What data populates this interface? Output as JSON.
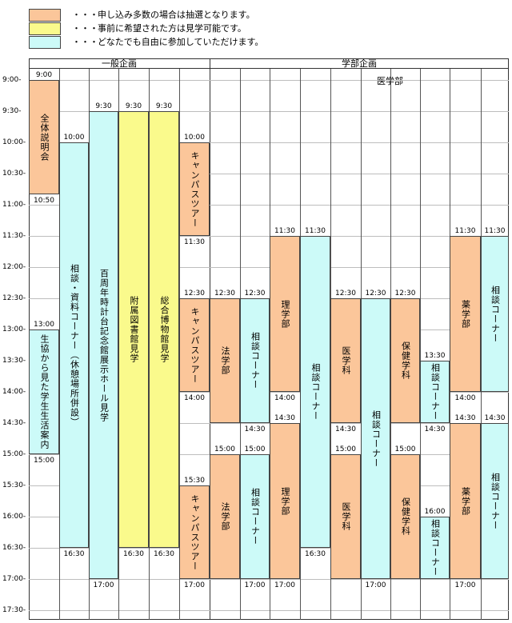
{
  "legend": [
    {
      "dots": "・・・",
      "text": "申し込み多数の場合は抽選となります。"
    },
    {
      "dots": "・・・",
      "text": "事前に希望された方は見学可能です。"
    },
    {
      "dots": "・・・",
      "text": "どなたでも自由に参加していただけます。"
    }
  ],
  "colors": {
    "lottery": "#fbc69a",
    "reserved": "#fafa8c",
    "open": "#ccfaf8"
  },
  "headers": {
    "general": "一般企画",
    "faculty": "学部企画",
    "medical": "医学部"
  },
  "times": [
    "9:00-",
    "9:30-",
    "10:00-",
    "10:30-",
    "11:00-",
    "11:30-",
    "12:00-",
    "12:30-",
    "13:00-",
    "13:30-",
    "14:00-",
    "14:30-",
    "15:00-",
    "15:30-",
    "16:00-",
    "16:30-",
    "17:00-",
    "17:30-"
  ],
  "blocks": {
    "b1": {
      "label": "全体説明会",
      "start": "9:00",
      "end": "10:50"
    },
    "b2": {
      "label": "生協から見た学生生活案内",
      "start": "13:00",
      "end": "15:00"
    },
    "b3": {
      "label": "相談・資料コーナー（休憩場所併設）",
      "start": "10:00",
      "end": "16:30"
    },
    "b4": {
      "label": "百周年時計台記念館展示ホール見学",
      "start": "9:30",
      "end": "17:00"
    },
    "b5": {
      "label": "附属図書館見学",
      "start": "9:30",
      "end": "16:30"
    },
    "b6": {
      "label": "総合博物館見学",
      "start": "9:30",
      "end": "16:30"
    },
    "b7": {
      "label": "キャンパスツアー",
      "start": "10:00",
      "end": "11:30"
    },
    "b8": {
      "label": "キャンパスツアー",
      "start": "12:30",
      "end": "14:00"
    },
    "b9": {
      "label": "キャンパスツアー",
      "start": "15:30",
      "end": "17:00"
    },
    "b10": {
      "label": "法学部",
      "start": "12:30",
      "end": "14:30"
    },
    "b11": {
      "label": "相談コーナー",
      "start": "12:30",
      "end": "14:30"
    },
    "b12": {
      "label": "法学部",
      "start": "15:00",
      "end": "17:00"
    },
    "b13": {
      "label": "相談コーナー",
      "start": "15:00",
      "end": "17:00"
    },
    "b14": {
      "label": "理学部",
      "start": "11:30",
      "end": "14:00"
    },
    "b15": {
      "label": "理学部",
      "start": "14:30",
      "end": "17:00"
    },
    "b16": {
      "label": "相談コーナー",
      "start": "11:30",
      "end": "16:30"
    },
    "b17": {
      "label": "医学科",
      "start": "12:30",
      "end": "14:30"
    },
    "b18": {
      "label": "医学科",
      "start": "15:00",
      "end": "17:00"
    },
    "b19": {
      "label": "相談コーナー",
      "start": "12:30",
      "end": "17:00"
    },
    "b20": {
      "label": "保健学科",
      "start": "12:30",
      "end": "14:30"
    },
    "b21": {
      "label": "保健学科",
      "start": "15:00",
      "end": "17:00"
    },
    "b22": {
      "label": "相談コーナー",
      "start": "13:30",
      "end": "14:30"
    },
    "b23": {
      "label": "相談コーナー",
      "start": "16:00",
      "end": "17:00"
    },
    "b24": {
      "label": "薬学部",
      "start": "11:30",
      "end": "14:00"
    },
    "b25": {
      "label": "相談コーナー",
      "start": "11:30",
      "end": "14:00"
    },
    "b26": {
      "label": "薬学部",
      "start": "14:30",
      "end": "17:00"
    },
    "b27": {
      "label": "相談コーナー",
      "start": "14:30",
      "end": "17:00"
    }
  },
  "end_tags": {
    "b1": "10:50",
    "b3": "16:30",
    "b4": "17:00",
    "b5": "16:30",
    "b6": "16:30",
    "b7": "11:30",
    "b8": "14:00",
    "b9": "17:00",
    "b11": "14:30",
    "b13": "17:00",
    "b14": "14:00",
    "b15": "17:00",
    "b16": "16:30",
    "b17": "14:30",
    "b19": "17:00",
    "b22": "14:30",
    "b24": "14:00",
    "b26": "17:00",
    "b2": "15:00"
  }
}
